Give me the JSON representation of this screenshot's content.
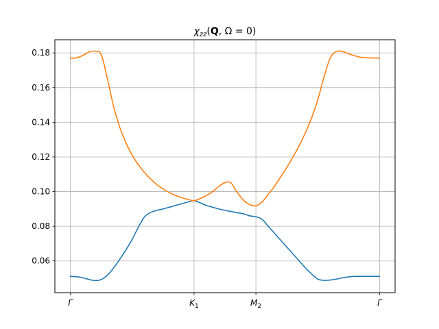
{
  "chart_data": {
    "type": "line",
    "title_parts": [
      "χ",
      "zz",
      "(",
      "Q",
      ", Ω = 0)"
    ],
    "xlabel": "",
    "ylabel": "",
    "x_ticks": [
      {
        "pos": 0.0,
        "base": "Γ",
        "sub": ""
      },
      {
        "pos": 1.0,
        "base": "K",
        "sub": "1"
      },
      {
        "pos": 1.5,
        "base": "M",
        "sub": "2"
      },
      {
        "pos": 2.5,
        "base": "Γ",
        "sub": ""
      }
    ],
    "xlim": [
      -0.125,
      2.625
    ],
    "ylim": [
      0.0417,
      0.1876
    ],
    "yticks": [
      0.06,
      0.08,
      0.1,
      0.12,
      0.14,
      0.16,
      0.18
    ],
    "ytick_labels": [
      "0.06",
      "0.08",
      "0.10",
      "0.12",
      "0.14",
      "0.16",
      "0.18"
    ],
    "grid": true,
    "colors": {
      "series1": "#1f77b4",
      "series2": "#ff7f0e"
    },
    "series": [
      {
        "color": "#1f77b4",
        "points": [
          [
            0.0,
            0.0511
          ],
          [
            0.05,
            0.0509
          ],
          [
            0.1,
            0.0503
          ],
          [
            0.15,
            0.0493
          ],
          [
            0.2,
            0.0487
          ],
          [
            0.25,
            0.0493
          ],
          [
            0.3,
            0.0518
          ],
          [
            0.35,
            0.056
          ],
          [
            0.4,
            0.061
          ],
          [
            0.45,
            0.0665
          ],
          [
            0.5,
            0.0725
          ],
          [
            0.55,
            0.0795
          ],
          [
            0.6,
            0.0855
          ],
          [
            0.65,
            0.088
          ],
          [
            0.7,
            0.0892
          ],
          [
            0.75,
            0.09
          ],
          [
            0.8,
            0.091
          ],
          [
            0.85,
            0.092
          ],
          [
            0.9,
            0.093
          ],
          [
            0.95,
            0.094
          ],
          [
            1.0,
            0.0948
          ],
          [
            1.05,
            0.0935
          ],
          [
            1.1,
            0.092
          ],
          [
            1.15,
            0.091
          ],
          [
            1.2,
            0.09
          ],
          [
            1.25,
            0.0892
          ],
          [
            1.3,
            0.0885
          ],
          [
            1.35,
            0.0878
          ],
          [
            1.4,
            0.0872
          ],
          [
            1.45,
            0.086
          ],
          [
            1.5,
            0.0855
          ],
          [
            1.55,
            0.084
          ],
          [
            1.6,
            0.08
          ],
          [
            1.65,
            0.076
          ],
          [
            1.7,
            0.072
          ],
          [
            1.75,
            0.068
          ],
          [
            1.8,
            0.064
          ],
          [
            1.85,
            0.06
          ],
          [
            1.9,
            0.056
          ],
          [
            1.95,
            0.0525
          ],
          [
            2.0,
            0.0495
          ],
          [
            2.05,
            0.0488
          ],
          [
            2.1,
            0.049
          ],
          [
            2.15,
            0.0495
          ],
          [
            2.2,
            0.0503
          ],
          [
            2.25,
            0.0508
          ],
          [
            2.3,
            0.0511
          ],
          [
            2.35,
            0.0511
          ],
          [
            2.4,
            0.0511
          ],
          [
            2.45,
            0.0511
          ],
          [
            2.5,
            0.0511
          ]
        ]
      },
      {
        "color": "#ff7f0e",
        "points": [
          [
            0.0,
            0.177
          ],
          [
            0.05,
            0.1772
          ],
          [
            0.1,
            0.1785
          ],
          [
            0.15,
            0.1805
          ],
          [
            0.2,
            0.181
          ],
          [
            0.25,
            0.179
          ],
          [
            0.3,
            0.165
          ],
          [
            0.35,
            0.149
          ],
          [
            0.4,
            0.137
          ],
          [
            0.45,
            0.128
          ],
          [
            0.5,
            0.121
          ],
          [
            0.55,
            0.1155
          ],
          [
            0.6,
            0.111
          ],
          [
            0.65,
            0.1072
          ],
          [
            0.7,
            0.104
          ],
          [
            0.75,
            0.1015
          ],
          [
            0.8,
            0.0995
          ],
          [
            0.85,
            0.0978
          ],
          [
            0.9,
            0.0965
          ],
          [
            0.95,
            0.0955
          ],
          [
            1.0,
            0.0948
          ],
          [
            1.05,
            0.096
          ],
          [
            1.1,
            0.0978
          ],
          [
            1.15,
            0.1
          ],
          [
            1.2,
            0.103
          ],
          [
            1.25,
            0.1052
          ],
          [
            1.28,
            0.1055
          ],
          [
            1.3,
            0.105
          ],
          [
            1.35,
            0.0995
          ],
          [
            1.4,
            0.095
          ],
          [
            1.45,
            0.0925
          ],
          [
            1.5,
            0.0918
          ],
          [
            1.55,
            0.094
          ],
          [
            1.6,
            0.0985
          ],
          [
            1.65,
            0.103
          ],
          [
            1.7,
            0.1085
          ],
          [
            1.75,
            0.114
          ],
          [
            1.8,
            0.12
          ],
          [
            1.85,
            0.1265
          ],
          [
            1.9,
            0.134
          ],
          [
            1.95,
            0.1425
          ],
          [
            2.0,
            0.153
          ],
          [
            2.05,
            0.166
          ],
          [
            2.1,
            0.177
          ],
          [
            2.15,
            0.1808
          ],
          [
            2.2,
            0.1808
          ],
          [
            2.25,
            0.1795
          ],
          [
            2.3,
            0.1783
          ],
          [
            2.35,
            0.1775
          ],
          [
            2.4,
            0.1772
          ],
          [
            2.5,
            0.177
          ]
        ]
      }
    ]
  }
}
